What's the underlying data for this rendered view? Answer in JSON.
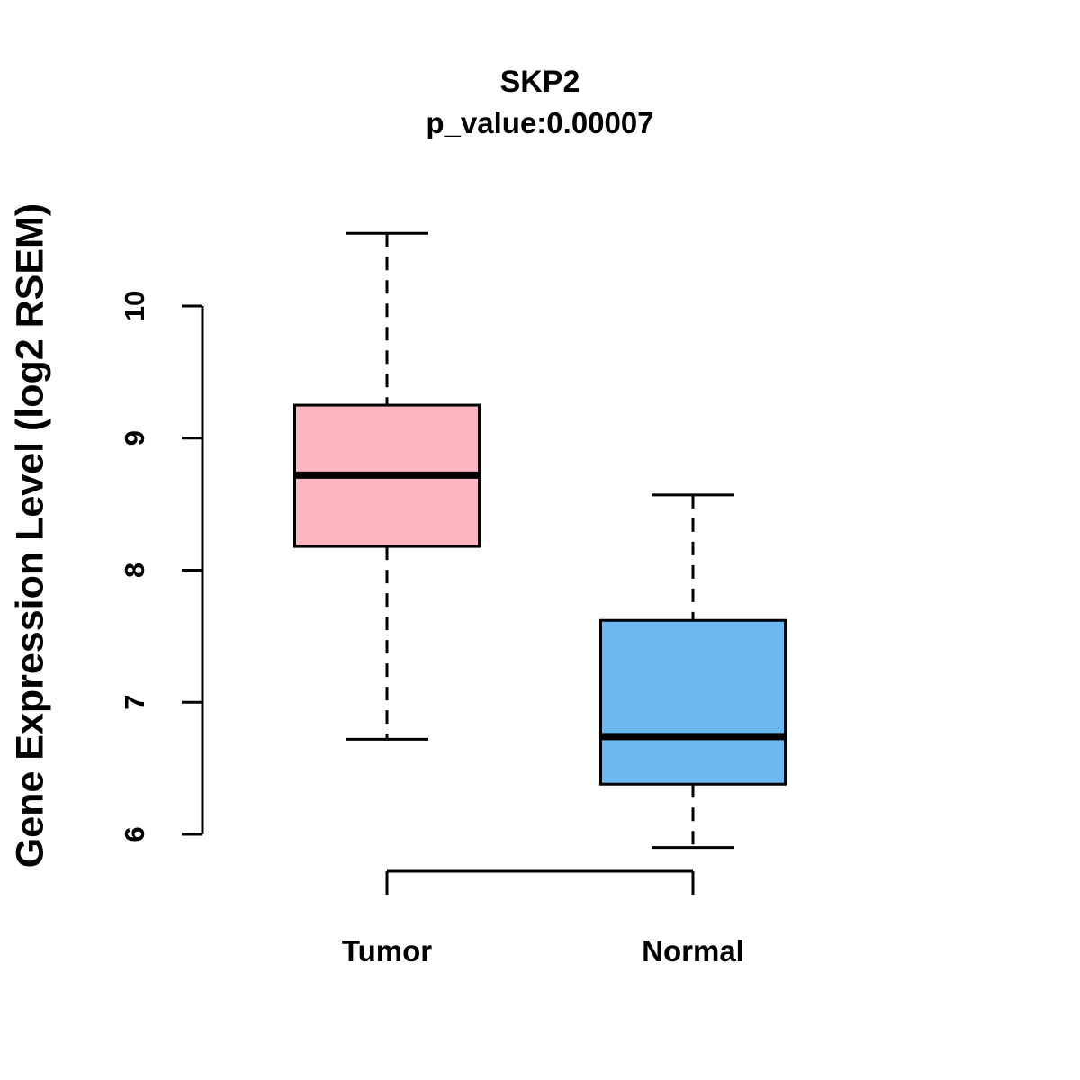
{
  "page": {
    "background_color": "#ffffff",
    "foreground_color": "#000000"
  },
  "chart_data": {
    "type": "boxplot",
    "title": "SKP2",
    "subtitle": "p_value:0.00007",
    "ylabel": "Gene Expression Level (log2 RSEM)",
    "xlabel": "",
    "y_ticks": [
      6,
      7,
      8,
      9,
      10
    ],
    "ylim": [
      5.6,
      10.7
    ],
    "grid": false,
    "legend": "none",
    "categories": [
      "Tumor",
      "Normal"
    ],
    "series": [
      {
        "name": "Tumor",
        "color": "#FFB6C1",
        "min": 6.72,
        "q1": 8.18,
        "median": 8.72,
        "q3": 9.25,
        "max": 10.55
      },
      {
        "name": "Normal",
        "color": "#6CB8F0",
        "min": 5.9,
        "q1": 6.38,
        "median": 6.74,
        "q3": 7.62,
        "max": 8.57
      }
    ]
  }
}
